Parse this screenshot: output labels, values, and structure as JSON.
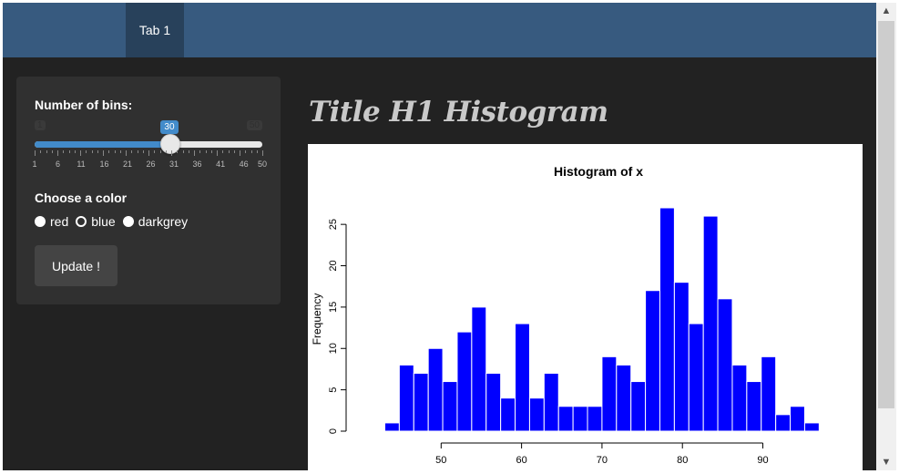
{
  "navbar": {
    "tabs": [
      {
        "label": "Tab 1"
      }
    ]
  },
  "sidebar": {
    "bins": {
      "label": "Number of bins:",
      "min": 1,
      "max": 50,
      "value": 30,
      "value_label": "30",
      "edge_min": "1",
      "edge_max": "50",
      "tick_labels": [
        "1",
        "6",
        "11",
        "16",
        "21",
        "26",
        "31",
        "36",
        "41",
        "46",
        "50"
      ]
    },
    "color": {
      "label": "Choose a color",
      "options": [
        {
          "label": "red",
          "selected": false
        },
        {
          "label": "blue",
          "selected": true
        },
        {
          "label": "darkgrey",
          "selected": false
        }
      ]
    },
    "update_label": "Update !"
  },
  "main": {
    "title": "Title H1 Histogram"
  },
  "chart_data": {
    "type": "bar",
    "title": "Histogram of x",
    "xlabel": "",
    "ylabel": "Frequency",
    "bar_color": "#0000ff",
    "bin_width": 1.8,
    "bin_starts": [
      43,
      44.8,
      46.6,
      48.4,
      50.2,
      52,
      53.8,
      55.6,
      57.4,
      59.2,
      61,
      62.8,
      64.6,
      66.4,
      68.2,
      70,
      71.8,
      73.6,
      75.4,
      77.2,
      79,
      80.8,
      82.6,
      84.4,
      86.2,
      88,
      89.8,
      91.6,
      93.4,
      95.2
    ],
    "values": [
      1,
      8,
      7,
      10,
      6,
      12,
      15,
      7,
      4,
      13,
      4,
      7,
      3,
      3,
      3,
      9,
      8,
      6,
      17,
      27,
      18,
      13,
      26,
      16,
      8,
      6,
      9,
      2,
      3,
      1
    ],
    "xlim": [
      40,
      99
    ],
    "ylim": [
      0,
      27
    ],
    "x_ticks": [
      50,
      60,
      70,
      80,
      90
    ],
    "y_ticks": [
      0,
      5,
      10,
      15,
      20,
      25
    ]
  }
}
